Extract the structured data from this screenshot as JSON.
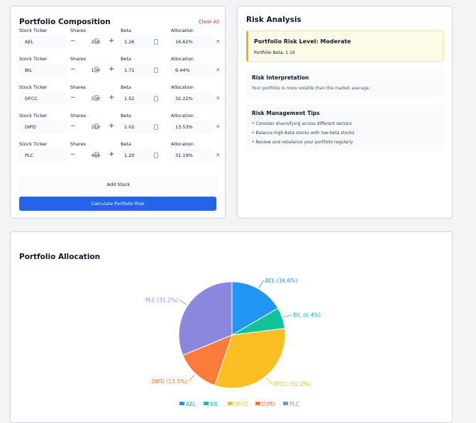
{
  "portfolio": {
    "title": "Portfolio Composition",
    "clear_label": "Clear All",
    "labels": {
      "ticker": "Stock Ticker",
      "shares": "Shares",
      "beta": "Beta",
      "allocation": "Allocation"
    },
    "stocks": [
      {
        "ticker": "AEL",
        "shares": "258",
        "beta": "1.26",
        "allocation": "16.62%"
      },
      {
        "ticker": "BIL",
        "shares": "100",
        "beta": "1.71",
        "allocation": "6.44%"
      },
      {
        "ticker": "DFCC",
        "shares": "500",
        "beta": "1.52",
        "allocation": "32.22%"
      },
      {
        "ticker": "DIPD",
        "shares": "210",
        "beta": "1.02",
        "allocation": "13.53%"
      },
      {
        "ticker": "PLC",
        "shares": "484",
        "beta": "1.20",
        "allocation": "31.19%"
      }
    ],
    "remove_symbol": "x",
    "minus_symbol": "−",
    "plus_symbol": "+",
    "add_stock_label": "Add Stock",
    "calculate_label": "Calculate Portfolio Risk"
  },
  "risk": {
    "title": "Risk Analysis",
    "level_title": "Portfolio Risk Level: Moderate",
    "beta_text": "Portfolio Beta: 1.19",
    "interpretation_title": "Risk Interpretation",
    "interpretation_text": "Your portfolio is more volatile than the market average.",
    "tips_title": "Risk Management Tips",
    "tips": [
      "Consider diversifying across different sectors",
      "Balance high-beta stocks with low-beta stocks",
      "Review and rebalance your portfolio regularly"
    ]
  },
  "allocation": {
    "title": "Portfolio Allocation"
  },
  "chart_data": {
    "type": "pie",
    "title": "",
    "slices": [
      {
        "name": "AEL",
        "value": 16.6,
        "label": "AEL (16.6%)",
        "color": "#2196f3"
      },
      {
        "name": "BIL",
        "value": 6.4,
        "label": "BIL (6.4%)",
        "color": "#10c39a"
      },
      {
        "name": "DFCC",
        "value": 32.2,
        "label": "DFCC (32.2%)",
        "color": "#fbbf24"
      },
      {
        "name": "DIPD",
        "value": 13.5,
        "label": "DIPD (13.5%)",
        "color": "#fb7c3a"
      },
      {
        "name": "PLC",
        "value": 31.2,
        "label": "PLC (31.2%)",
        "color": "#8b87dc"
      }
    ],
    "legend": [
      "AEL",
      "BIL",
      "DFCC",
      "DIPD",
      "PLC"
    ],
    "legend_placement": "bottom"
  },
  "colors": {
    "accent": "#2563eb",
    "danger": "#dc2626",
    "warning": "#eab308"
  }
}
